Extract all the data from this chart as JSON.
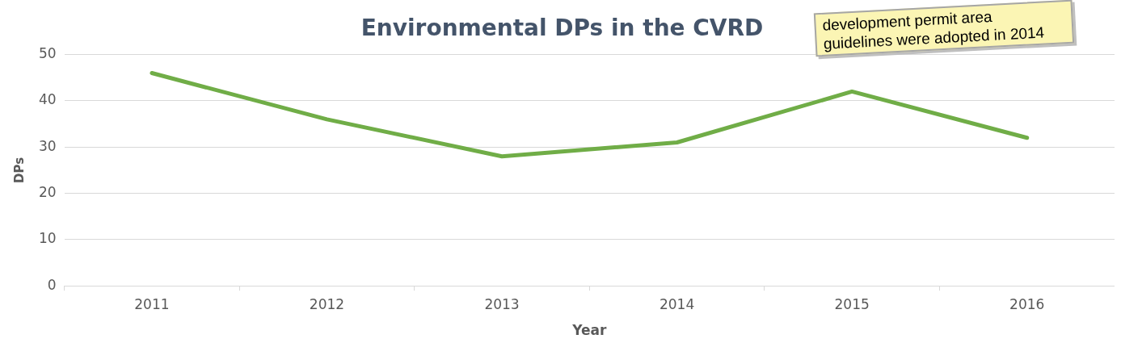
{
  "chart_data": {
    "type": "line",
    "title": "Environmental DPs in the CVRD",
    "xlabel": "Year",
    "ylabel": "DPs",
    "categories": [
      "2011",
      "2012",
      "2013",
      "2014",
      "2015",
      "2016"
    ],
    "series": [
      {
        "color": "#70ad47",
        "values": [
          46,
          36,
          28,
          31,
          42,
          32
        ]
      }
    ],
    "ylim": [
      0,
      50
    ],
    "yticks": [
      0,
      10,
      20,
      30,
      40,
      50
    ],
    "grid": "y",
    "legend": false,
    "marker": "none",
    "line_style": "solid",
    "annotations": [
      "development permit area guidelines were adopted in 2014"
    ]
  }
}
